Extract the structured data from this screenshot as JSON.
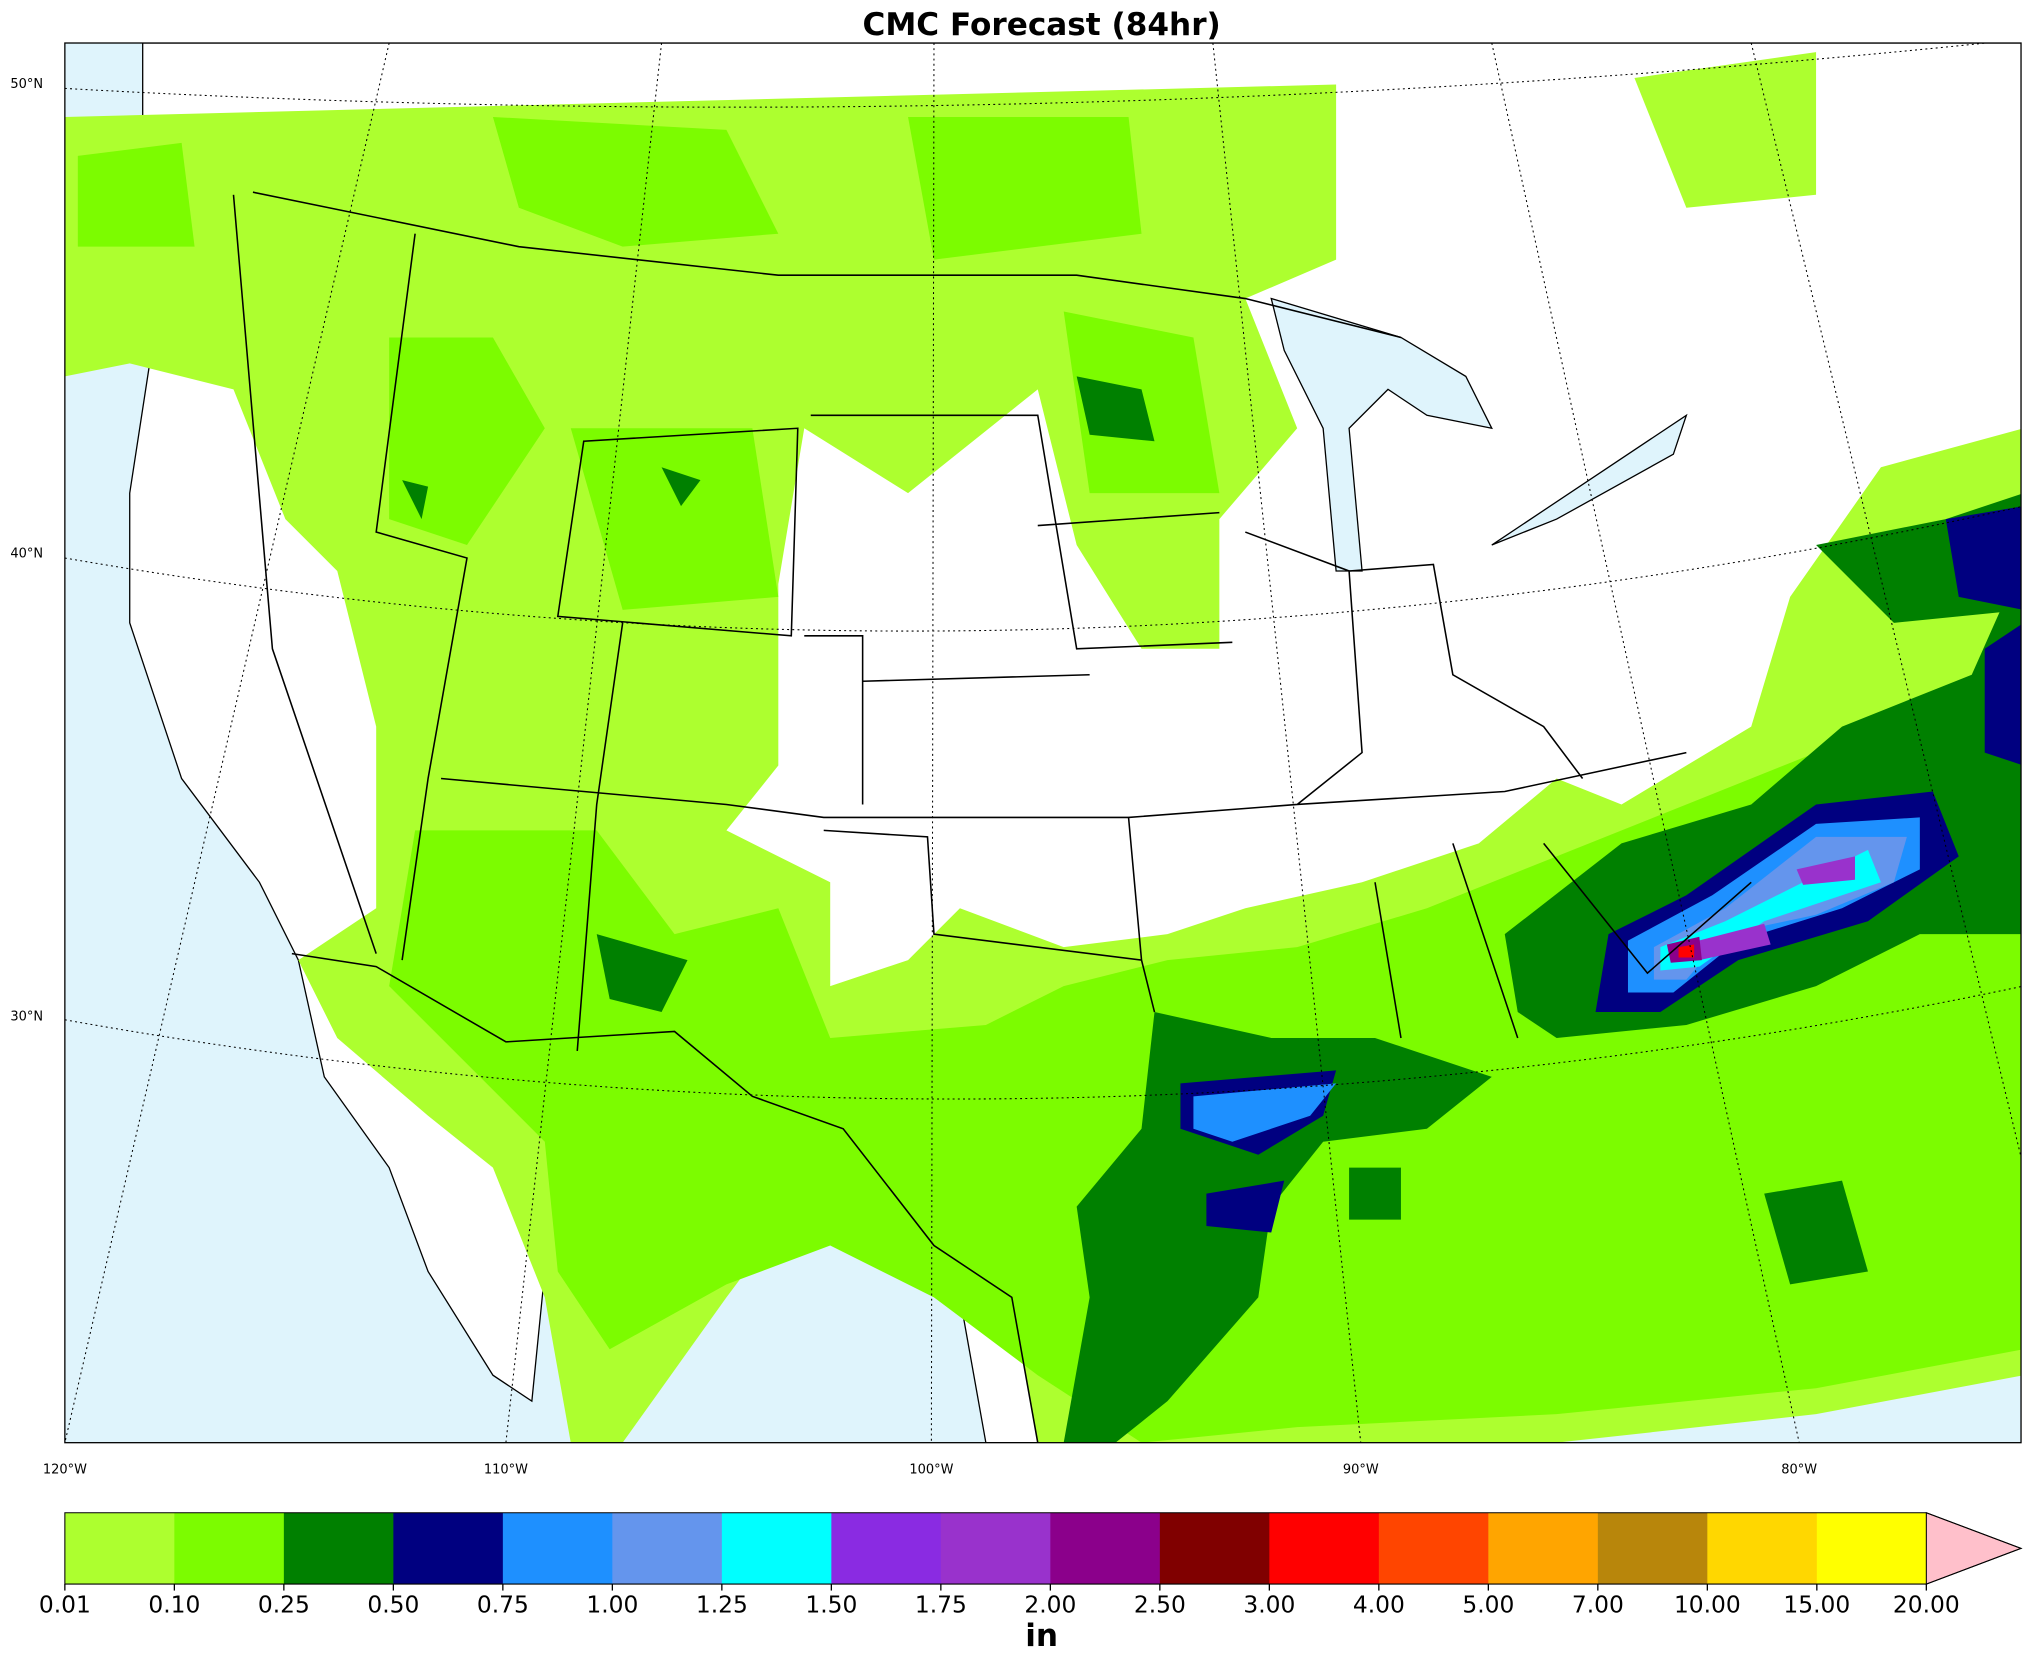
{
  "title": "CMC Forecast (84hr)",
  "latitude_labels": [
    "50°N",
    "40°N",
    "30°N"
  ],
  "longitude_labels": [
    "120°W",
    "110°W",
    "100°W",
    "90°W",
    "80°W"
  ],
  "colorbar": {
    "label": "in",
    "levels": [
      {
        "value": 0.01,
        "label": "0.01"
      },
      {
        "value": 0.1,
        "label": "0.10"
      },
      {
        "value": 0.25,
        "label": "0.25"
      },
      {
        "value": 0.5,
        "label": "0.50"
      },
      {
        "value": 0.75,
        "label": "0.75"
      },
      {
        "value": 1,
        "label": "1.00"
      },
      {
        "value": 1.25,
        "label": "1.25"
      },
      {
        "value": 1.5,
        "label": "1.50"
      },
      {
        "value": 1.75,
        "label": "1.75"
      },
      {
        "value": 2,
        "label": "2.00"
      },
      {
        "value": 2.5,
        "label": "2.50"
      },
      {
        "value": 3,
        "label": "3.00"
      },
      {
        "value": 4,
        "label": "4.00"
      },
      {
        "value": 5,
        "label": "5.00"
      },
      {
        "value": 7,
        "label": "7.00"
      },
      {
        "value": 10,
        "label": "10.00"
      },
      {
        "value": 15,
        "label": "15.00"
      },
      {
        "value": 20,
        "label": "20.00"
      }
    ],
    "colors": [
      "#adff2f",
      "#7cfc00",
      "#008000",
      "#000080",
      "#1e90ff",
      "#6495ed",
      "#00ffff",
      "#8a2be2",
      "#9932cc",
      "#8b008b",
      "#800000",
      "#ff0000",
      "#ff4500",
      "#ffa500",
      "#b8860b",
      "#ffd700",
      "#ffff00"
    ],
    "over_color": "#ffc0cb"
  }
}
